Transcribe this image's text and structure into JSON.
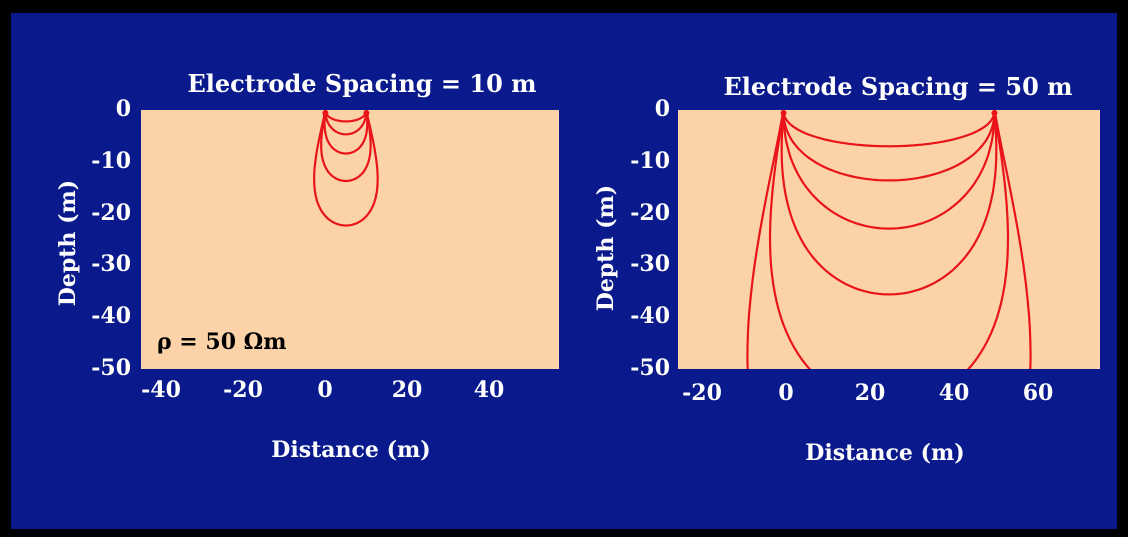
{
  "chart_data": [
    {
      "type": "line",
      "title": "Electrode Spacing = 10 m",
      "xlabel": "Distance (m)",
      "ylabel": "Depth (m)",
      "xlim": [
        -45,
        57
      ],
      "ylim": [
        -50,
        0
      ],
      "x_ticks": [
        "-40",
        "-20",
        "0",
        "20",
        "40"
      ],
      "x_tick_values": [
        -40,
        -20,
        0,
        20,
        40
      ],
      "y_ticks": [
        "0",
        "-10",
        "-20",
        "-30",
        "-40",
        "-50"
      ],
      "y_tick_values": [
        0,
        -10,
        -20,
        -30,
        -40,
        -50
      ],
      "annotation": "ρ = 50 Ωm",
      "electrodes_x": [
        0,
        10
      ],
      "series": [
        {
          "max_depth": 2.2
        },
        {
          "max_depth": 4.7
        },
        {
          "max_depth": 8.4
        },
        {
          "max_depth": 13.7
        },
        {
          "max_depth": 22.3
        }
      ],
      "grid": false,
      "plot_background": "#fcd3a8",
      "line_color": "#e8141a"
    },
    {
      "type": "line",
      "title": "Electrode Spacing = 50 m",
      "xlabel": "Distance (m)",
      "ylabel": "Depth (m)",
      "xlim": [
        -25,
        75
      ],
      "ylim": [
        -50,
        0
      ],
      "x_ticks": [
        "-20",
        "0",
        "20",
        "40",
        "60"
      ],
      "x_tick_values": [
        -20,
        0,
        20,
        40,
        60
      ],
      "y_ticks": [
        "0",
        "-10",
        "-20",
        "-30",
        "-40",
        "-50"
      ],
      "y_tick_values": [
        0,
        -10,
        -20,
        -30,
        -40,
        -50
      ],
      "electrodes_x": [
        0,
        50
      ],
      "series": [
        {
          "max_depth": 7.0
        },
        {
          "max_depth": 13.6
        },
        {
          "max_depth": 22.9
        },
        {
          "max_depth": 35.6
        },
        {
          "max_depth": 57.0
        },
        {
          "max_depth": 86.0
        }
      ],
      "grid": false,
      "plot_background": "#fcd3a8",
      "line_color": "#e8141a"
    }
  ]
}
